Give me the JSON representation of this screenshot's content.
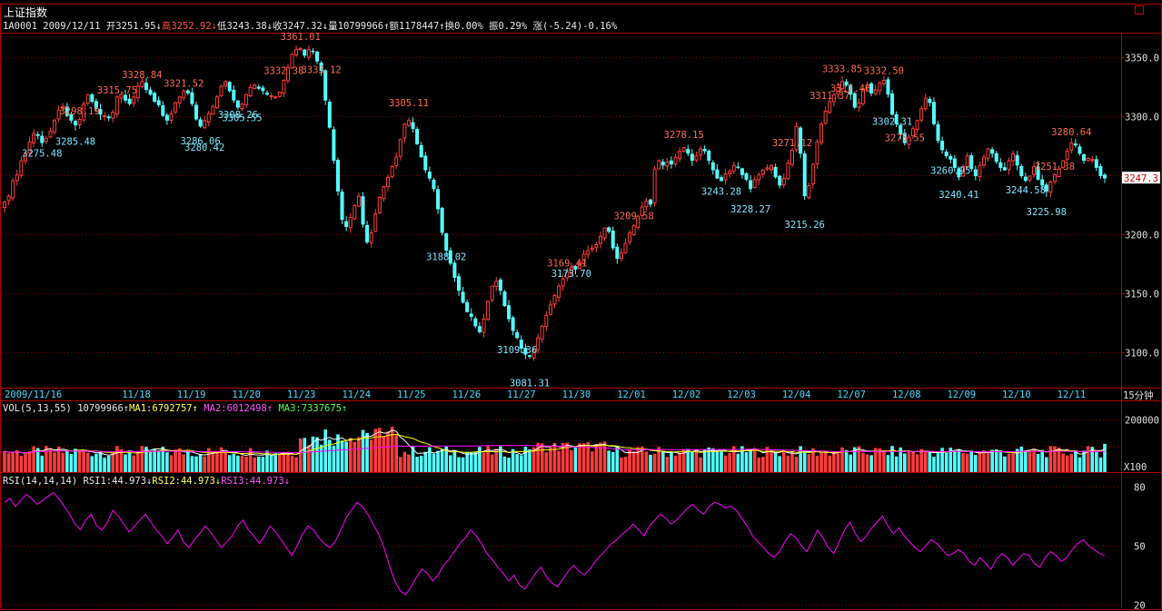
{
  "header": {
    "title": "上证指数",
    "code": "1A0001",
    "date": "2009/12/11",
    "open": "开3251.95↓",
    "high": "高3252.92↓",
    "low": "低3243.38↓",
    "close": "收3247.32↓",
    "volume": "量10799966↑",
    "amount": "额1178447↑",
    "turnover": "换0.00%",
    "amplitude": "振0.29%",
    "change": "涨(-5.24)-0.16%"
  },
  "price_panel": {
    "y_ticks": [
      "3350.0",
      "3300.0",
      "3250.0",
      "3200.0",
      "3150.0",
      "3100.0"
    ],
    "current_price_tag": "3247.3",
    "annotations_high": [
      "3298.19",
      "3315.75",
      "3328.84",
      "3321.52",
      "3332.38",
      "3333.12",
      "3361.01",
      "3305.11",
      "3169.41",
      "3209.58",
      "3278.15",
      "3271.12",
      "3311.37",
      "3332.50",
      "3333.85",
      "3317.46",
      "3275.55",
      "3251.38",
      "3280.64"
    ],
    "annotations_low": [
      "3275.48",
      "3285.48",
      "3286.06",
      "3280.42",
      "3308.26",
      "3305.55",
      "3188.02",
      "3109.36",
      "3081.31",
      "3173.70",
      "3243.28",
      "3228.27",
      "3215.26",
      "3302.31",
      "3260.95",
      "3240.41",
      "3244.58",
      "3225.98"
    ]
  },
  "date_axis": {
    "labels": [
      "2009/11/16",
      "11/18",
      "11/19",
      "11/20",
      "11/23",
      "11/24",
      "11/25",
      "11/26",
      "11/27",
      "11/30",
      "12/01",
      "12/02",
      "12/03",
      "12/04",
      "12/07",
      "12/08",
      "12/09",
      "12/10",
      "12/11"
    ],
    "period": "15分钟"
  },
  "vol_panel": {
    "legend": {
      "name": "VOL(5,13,55)",
      "value": "10799966↑",
      "ma1": "MA1:6792757↑",
      "ma2": "MA2:6012498↑",
      "ma3": "MA3:7337675↑"
    },
    "y_ticks": [
      "200000",
      "100000"
    ],
    "unit": "X100"
  },
  "rsi_panel": {
    "legend": {
      "name": "RSI(14,14,14)",
      "rsi1": "RSI1:44.973↓",
      "rsi2": "RSI2:44.973↓",
      "rsi3": "RSI3:44.973↓"
    },
    "y_ticks": [
      "80",
      "50",
      "20"
    ]
  },
  "colors": {
    "up": "#ff3c3c",
    "down": "#54ffff",
    "grid": "#8b0000",
    "frame": "#b00000",
    "ma1": "#ffffff",
    "ma2": "#ffff00",
    "ma3": "#ff00ff",
    "rsi": "#ff00ff",
    "label_high": "#ff6a50",
    "label_low": "#7de8ff"
  },
  "chart_data": [
    {
      "type": "candlestick",
      "title": "上证指数",
      "interval": "15分钟",
      "ylim": [
        3070,
        3365
      ],
      "y_ticks": [
        3100,
        3150,
        3200,
        3250,
        3300,
        3350
      ],
      "annotated_points": [
        {
          "date": "11/16",
          "value": 3298.19,
          "kind": "high"
        },
        {
          "date": "11/17",
          "value": 3275.48,
          "kind": "low"
        },
        {
          "date": "11/18",
          "value": 3315.75,
          "kind": "high"
        },
        {
          "date": "11/18",
          "value": 3285.48,
          "kind": "low"
        },
        {
          "date": "11/19",
          "value": 3328.84,
          "kind": "high"
        },
        {
          "date": "11/19",
          "value": 3286.06,
          "kind": "low"
        },
        {
          "date": "11/20",
          "value": 3321.52,
          "kind": "high"
        },
        {
          "date": "11/20",
          "value": 3280.42,
          "kind": "low"
        },
        {
          "date": "11/23",
          "value": 3332.38,
          "kind": "high"
        },
        {
          "date": "11/23",
          "value": 3333.12,
          "kind": "high"
        },
        {
          "date": "11/23",
          "value": 3308.26,
          "kind": "low"
        },
        {
          "date": "11/23",
          "value": 3305.55,
          "kind": "low"
        },
        {
          "date": "11/24",
          "value": 3361.01,
          "kind": "high"
        },
        {
          "date": "11/25",
          "value": 3188.02,
          "kind": "low"
        },
        {
          "date": "11/26",
          "value": 3305.11,
          "kind": "high"
        },
        {
          "date": "11/27",
          "value": 3109.36,
          "kind": "low"
        },
        {
          "date": "11/27",
          "value": 3169.41,
          "kind": "high"
        },
        {
          "date": "11/30",
          "value": 3081.31,
          "kind": "low"
        },
        {
          "date": "12/01",
          "value": 3209.58,
          "kind": "high"
        },
        {
          "date": "12/01",
          "value": 3173.7,
          "kind": "low"
        },
        {
          "date": "12/02",
          "value": 3278.15,
          "kind": "high"
        },
        {
          "date": "12/03",
          "value": 3271.12,
          "kind": "high"
        },
        {
          "date": "12/03",
          "value": 3243.28,
          "kind": "low"
        },
        {
          "date": "12/03",
          "value": 3228.27,
          "kind": "low"
        },
        {
          "date": "12/04",
          "value": 3311.37,
          "kind": "high"
        },
        {
          "date": "12/04",
          "value": 3215.26,
          "kind": "low"
        },
        {
          "date": "12/07",
          "value": 3332.5,
          "kind": "high"
        },
        {
          "date": "12/07",
          "value": 3302.31,
          "kind": "low"
        },
        {
          "date": "12/07",
          "value": 3333.85,
          "kind": "high"
        },
        {
          "date": "12/08",
          "value": 3317.46,
          "kind": "high"
        },
        {
          "date": "12/08",
          "value": 3260.95,
          "kind": "low"
        },
        {
          "date": "12/09",
          "value": 3275.55,
          "kind": "high"
        },
        {
          "date": "12/09",
          "value": 3240.41,
          "kind": "low"
        },
        {
          "date": "12/10",
          "value": 3251.38,
          "kind": "high"
        },
        {
          "date": "12/10",
          "value": 3244.58,
          "kind": "low"
        },
        {
          "date": "12/10",
          "value": 3225.98,
          "kind": "low"
        },
        {
          "date": "12/11",
          "value": 3280.64,
          "kind": "high"
        }
      ],
      "last": {
        "open": 3251.95,
        "high": 3252.92,
        "low": 3243.38,
        "close": 3247.32,
        "change": -5.24,
        "pct": -0.16,
        "volume": 10799966,
        "amount": 1178447
      },
      "close_path": [
        3227,
        3232,
        3245,
        3250,
        3262,
        3268,
        3278,
        3285,
        3283,
        3277,
        3281,
        3287,
        3296,
        3305,
        3308,
        3300,
        3296,
        3292,
        3297,
        3310,
        3318,
        3312,
        3306,
        3301,
        3300,
        3298,
        3303,
        3316,
        3318,
        3313,
        3310,
        3316,
        3325,
        3329,
        3322,
        3318,
        3312,
        3309,
        3300,
        3296,
        3302,
        3311,
        3316,
        3321,
        3319,
        3310,
        3297,
        3291,
        3296,
        3302,
        3308,
        3316,
        3325,
        3329,
        3321,
        3313,
        3307,
        3310,
        3318,
        3324,
        3326,
        3323,
        3321,
        3318,
        3317,
        3316,
        3320,
        3330,
        3341,
        3352,
        3356,
        3357,
        3351,
        3356,
        3354,
        3346,
        3338,
        3313,
        3290,
        3262,
        3236,
        3212,
        3206,
        3214,
        3224,
        3232,
        3208,
        3193,
        3201,
        3217,
        3231,
        3240,
        3248,
        3257,
        3265,
        3280,
        3293,
        3296,
        3289,
        3276,
        3265,
        3254,
        3247,
        3238,
        3221,
        3201,
        3186,
        3175,
        3163,
        3152,
        3142,
        3134,
        3130,
        3122,
        3117,
        3128,
        3143,
        3156,
        3160,
        3152,
        3139,
        3128,
        3118,
        3112,
        3103,
        3098,
        3096,
        3101,
        3112,
        3122,
        3131,
        3140,
        3148,
        3156,
        3162,
        3168,
        3172,
        3170,
        3176,
        3183,
        3186,
        3188,
        3191,
        3198,
        3205,
        3202,
        3188,
        3179,
        3184,
        3192,
        3201,
        3207,
        3215,
        3223,
        3228,
        3225,
        3255,
        3262,
        3258,
        3261,
        3259,
        3265,
        3270,
        3273,
        3268,
        3262,
        3266,
        3272,
        3270,
        3262,
        3254,
        3247,
        3245,
        3251,
        3253,
        3258,
        3256,
        3250,
        3246,
        3238,
        3246,
        3250,
        3254,
        3256,
        3258,
        3248,
        3241,
        3247,
        3260,
        3271,
        3291,
        3268,
        3232,
        3241,
        3259,
        3278,
        3293,
        3304,
        3312,
        3318,
        3324,
        3329,
        3326,
        3318,
        3307,
        3311,
        3323,
        3326,
        3319,
        3322,
        3328,
        3330,
        3318,
        3301,
        3293,
        3284,
        3277,
        3282,
        3289,
        3296,
        3306,
        3315,
        3311,
        3293,
        3279,
        3271,
        3266,
        3263,
        3256,
        3248,
        3257,
        3266,
        3255,
        3249,
        3258,
        3265,
        3272,
        3268,
        3261,
        3256,
        3254,
        3262,
        3268,
        3258,
        3249,
        3245,
        3249,
        3257,
        3246,
        3241,
        3236,
        3244,
        3250,
        3255,
        3262,
        3270,
        3277,
        3275,
        3268,
        3262,
        3264,
        3263,
        3256,
        3249,
        3247
      ]
    },
    {
      "type": "bar",
      "title": "VOL(5,13,55)",
      "series": [
        {
          "name": "VOL",
          "last": 10799966
        },
        {
          "name": "MA1",
          "last": 6792757
        },
        {
          "name": "MA2",
          "last": 6012498
        },
        {
          "name": "MA3",
          "last": 7337675
        }
      ],
      "y_ticks": [
        100000,
        200000
      ],
      "unit": "X100"
    },
    {
      "type": "line",
      "title": "RSI(14,14,14)",
      "ylim": [
        20,
        80
      ],
      "y_ticks": [
        20,
        50,
        80
      ],
      "series": [
        {
          "name": "RSI1",
          "last": 44.973
        },
        {
          "name": "RSI2",
          "last": 44.973
        },
        {
          "name": "RSI3",
          "last": 44.973
        }
      ],
      "values": [
        72,
        74,
        70,
        73,
        76,
        74,
        71,
        73,
        75,
        77,
        74,
        70,
        66,
        61,
        58,
        63,
        66,
        60,
        58,
        62,
        68,
        65,
        61,
        57,
        60,
        63,
        66,
        62,
        58,
        55,
        51,
        54,
        58,
        52,
        49,
        53,
        56,
        60,
        57,
        53,
        49,
        52,
        55,
        60,
        63,
        58,
        55,
        51,
        55,
        60,
        57,
        53,
        49,
        45,
        50,
        56,
        60,
        58,
        54,
        51,
        49,
        52,
        58,
        64,
        68,
        72,
        70,
        66,
        61,
        56,
        49,
        40,
        32,
        27,
        25,
        29,
        34,
        38,
        36,
        32,
        35,
        40,
        43,
        47,
        51,
        54,
        58,
        55,
        51,
        46,
        43,
        39,
        36,
        32,
        35,
        30,
        28,
        32,
        36,
        39,
        34,
        31,
        29,
        33,
        37,
        40,
        37,
        35,
        38,
        42,
        45,
        48,
        51,
        53,
        56,
        58,
        61,
        58,
        55,
        60,
        63,
        66,
        64,
        61,
        63,
        66,
        69,
        71,
        68,
        66,
        70,
        72,
        71,
        69,
        70,
        68,
        64,
        60,
        55,
        52,
        49,
        46,
        44,
        47,
        52,
        56,
        54,
        50,
        47,
        52,
        58,
        54,
        49,
        46,
        52,
        58,
        62,
        56,
        52,
        55,
        59,
        62,
        65,
        60,
        56,
        59,
        55,
        52,
        49,
        47,
        50,
        53,
        51,
        48,
        45,
        46,
        48,
        46,
        42,
        40,
        44,
        41,
        38,
        43,
        46,
        44,
        40,
        43,
        46,
        45,
        41,
        39,
        44,
        47,
        45,
        42,
        44,
        48,
        51,
        53,
        50,
        48,
        46,
        45
      ]
    }
  ]
}
